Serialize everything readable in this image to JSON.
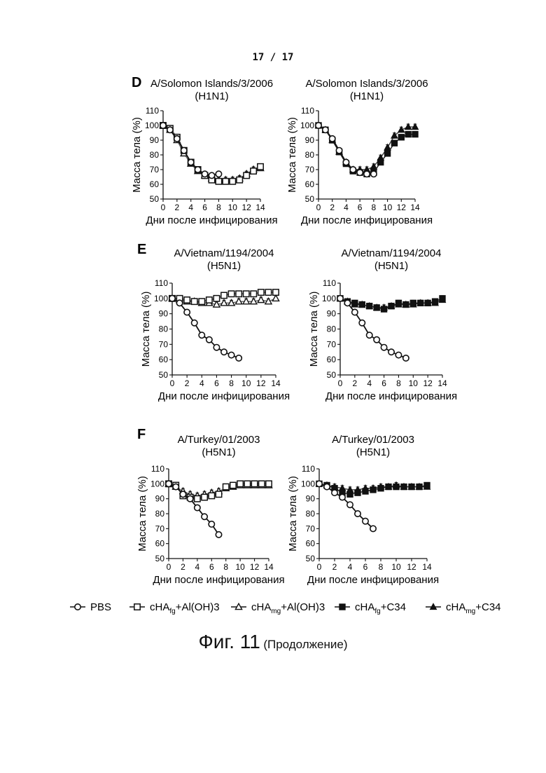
{
  "page_number": "17  /  17",
  "caption": {
    "main": "Фиг. 11",
    "sub": "(Продолжение)"
  },
  "legend": [
    {
      "key": "pbs",
      "label": "PBS",
      "sub": "",
      "after": "",
      "marker": "circle-open"
    },
    {
      "key": "fg_al",
      "label": "cHA",
      "sub": "fg",
      "after": "+Al(OH)3",
      "marker": "square-open"
    },
    {
      "key": "mg_al",
      "label": "cHA",
      "sub": "mg",
      "after": "+Al(OH)3",
      "marker": "triangle-open"
    },
    {
      "key": "fg_c34",
      "label": "cHA",
      "sub": "fg",
      "after": "+C34",
      "marker": "square-filled"
    },
    {
      "key": "mg_c34",
      "label": "cHA",
      "sub": "mg",
      "after": "+C34",
      "marker": "triangle-filled"
    }
  ],
  "chart_data": [
    {
      "type": "line",
      "panel": "D",
      "title": "A/Solomon Islands/3/2006",
      "subtitle": "(H1N1)",
      "xlabel": "Дни после инфицирования",
      "ylabel": "Масса тела (%)",
      "xlim": [
        0,
        14
      ],
      "ylim": [
        50,
        110
      ],
      "xticks": [
        0,
        2,
        4,
        6,
        8,
        10,
        12,
        14
      ],
      "yticks": [
        50,
        60,
        70,
        80,
        90,
        100,
        110
      ],
      "series": [
        {
          "key": "pbs",
          "x": [
            0,
            1,
            2,
            3,
            4,
            5,
            6,
            7,
            8
          ],
          "y": [
            100,
            97,
            91,
            83,
            75,
            70,
            67,
            66,
            67
          ]
        },
        {
          "key": "fg_al",
          "x": [
            0,
            1,
            2,
            3,
            4,
            5,
            6,
            7,
            8,
            9,
            10,
            11,
            12,
            13,
            14
          ],
          "y": [
            100,
            98,
            92,
            83,
            75,
            70,
            66,
            63,
            62,
            62,
            62,
            63,
            66,
            69,
            72
          ]
        },
        {
          "key": "mg_al",
          "x": [
            0,
            1,
            2,
            3,
            4,
            5,
            6,
            7,
            8,
            9,
            10,
            11,
            12,
            13,
            14
          ],
          "y": [
            100,
            97,
            90,
            81,
            74,
            69,
            66,
            64,
            63,
            63,
            63,
            64,
            67,
            70,
            71
          ]
        }
      ]
    },
    {
      "type": "line",
      "panel": "",
      "title": "A/Solomon Islands/3/2006",
      "subtitle": "(H1N1)",
      "xlabel": "Дни после инфицирования",
      "ylabel": "Масса тела (%)",
      "xlim": [
        0,
        14
      ],
      "ylim": [
        50,
        110
      ],
      "xticks": [
        0,
        2,
        4,
        6,
        8,
        10,
        12,
        14
      ],
      "yticks": [
        50,
        60,
        70,
        80,
        90,
        100,
        110
      ],
      "series": [
        {
          "key": "pbs",
          "x": [
            0,
            1,
            2,
            3,
            4,
            5,
            6,
            7,
            8
          ],
          "y": [
            100,
            97,
            91,
            83,
            75,
            70,
            68,
            67,
            67
          ]
        },
        {
          "key": "fg_c34",
          "x": [
            0,
            1,
            2,
            3,
            4,
            5,
            6,
            7,
            8,
            9,
            10,
            11,
            12,
            13,
            14
          ],
          "y": [
            100,
            97,
            90,
            82,
            74,
            69,
            68,
            67,
            68,
            75,
            81,
            88,
            92,
            94,
            94
          ]
        },
        {
          "key": "mg_c34",
          "x": [
            0,
            1,
            2,
            3,
            4,
            5,
            6,
            7,
            8,
            9,
            10,
            11,
            12,
            13,
            14
          ],
          "y": [
            100,
            97,
            90,
            82,
            75,
            70,
            70,
            70,
            72,
            78,
            85,
            93,
            97,
            99,
            99
          ]
        }
      ]
    },
    {
      "type": "line",
      "panel": "E",
      "title": "A/Vietnam/1194/2004",
      "subtitle": "(H5N1)",
      "xlabel": "Дни после инфицирования",
      "ylabel": "Масса тела (%)",
      "xlim": [
        0,
        14
      ],
      "ylim": [
        50,
        110
      ],
      "xticks": [
        0,
        2,
        4,
        6,
        8,
        10,
        12,
        14
      ],
      "yticks": [
        50,
        60,
        70,
        80,
        90,
        100,
        110
      ],
      "series": [
        {
          "key": "pbs",
          "x": [
            0,
            1,
            2,
            3,
            4,
            5,
            6,
            7,
            8,
            9
          ],
          "y": [
            100,
            97,
            91,
            84,
            76,
            73,
            68,
            65,
            63,
            61
          ]
        },
        {
          "key": "fg_al",
          "x": [
            0,
            1,
            2,
            3,
            4,
            5,
            6,
            7,
            8,
            9,
            10,
            11,
            12,
            13,
            14
          ],
          "y": [
            100,
            100,
            99,
            98,
            98,
            99,
            100,
            102,
            103,
            103,
            103,
            103,
            104,
            104,
            104
          ]
        },
        {
          "key": "mg_al",
          "x": [
            0,
            1,
            2,
            3,
            4,
            5,
            6,
            7,
            8,
            9,
            10,
            11,
            12,
            13,
            14
          ],
          "y": [
            100,
            99,
            98,
            98,
            97,
            97,
            96,
            97,
            97,
            98,
            98,
            98,
            99,
            98,
            100
          ]
        }
      ]
    },
    {
      "type": "line",
      "panel": "",
      "title": "A/Vietnam/1194/2004",
      "subtitle": "(H5N1)",
      "xlabel": "Дни после инфицирования",
      "ylabel": "Масса тела (%)",
      "xlim": [
        0,
        14
      ],
      "ylim": [
        50,
        110
      ],
      "xticks": [
        0,
        2,
        4,
        6,
        8,
        10,
        12,
        14
      ],
      "yticks": [
        50,
        60,
        70,
        80,
        90,
        100,
        110
      ],
      "series": [
        {
          "key": "pbs",
          "x": [
            0,
            1,
            2,
            3,
            4,
            5,
            6,
            7,
            8,
            9
          ],
          "y": [
            100,
            97,
            91,
            84,
            76,
            73,
            68,
            65,
            63,
            61
          ]
        },
        {
          "key": "fg_c34",
          "x": [
            0,
            1,
            2,
            3,
            4,
            5,
            6,
            7,
            8,
            9,
            10,
            11,
            12,
            13,
            14
          ],
          "y": [
            100,
            98,
            97,
            96,
            95,
            94,
            93,
            95,
            97,
            96,
            97,
            97,
            97,
            98,
            100
          ]
        },
        {
          "key": "mg_c34",
          "x": [
            0,
            1,
            2,
            3,
            4,
            5,
            6,
            7,
            8,
            9,
            10,
            11,
            12,
            13,
            14
          ],
          "y": [
            100,
            98,
            96,
            96,
            95,
            94,
            94,
            95,
            96,
            96,
            96,
            97,
            97,
            97,
            99
          ]
        }
      ]
    },
    {
      "type": "line",
      "panel": "F",
      "title": "A/Turkey/01/2003",
      "subtitle": "(H5N1)",
      "xlabel": "Дни после инфицирования",
      "ylabel": "Масса тела (%)",
      "xlim": [
        0,
        14
      ],
      "ylim": [
        50,
        110
      ],
      "xticks": [
        0,
        2,
        4,
        6,
        8,
        10,
        12,
        14
      ],
      "yticks": [
        50,
        60,
        70,
        80,
        90,
        100,
        110
      ],
      "series": [
        {
          "key": "pbs",
          "x": [
            0,
            1,
            2,
            3,
            4,
            5,
            6,
            7
          ],
          "y": [
            100,
            98,
            93,
            90,
            84,
            78,
            73,
            66
          ]
        },
        {
          "key": "fg_al",
          "x": [
            0,
            1,
            2,
            3,
            4,
            5,
            6,
            7,
            8,
            9,
            10,
            11,
            12,
            13,
            14
          ],
          "y": [
            100,
            99,
            92,
            91,
            90,
            91,
            92,
            93,
            98,
            99,
            100,
            100,
            100,
            100,
            100
          ]
        },
        {
          "key": "mg_al",
          "x": [
            0,
            1,
            2,
            3,
            4,
            5,
            6,
            7,
            8,
            9,
            10,
            11,
            12,
            13,
            14
          ],
          "y": [
            100,
            98,
            95,
            93,
            92,
            93,
            94,
            95,
            97,
            98,
            99,
            99,
            99,
            99,
            99
          ]
        }
      ]
    },
    {
      "type": "line",
      "panel": "",
      "title": "A/Turkey/01/2003",
      "subtitle": "(H5N1)",
      "xlabel": "Дни после инфицирования",
      "ylabel": "Масса тела (%)",
      "xlim": [
        0,
        14
      ],
      "ylim": [
        50,
        110
      ],
      "xticks": [
        0,
        2,
        4,
        6,
        8,
        10,
        12,
        14
      ],
      "yticks": [
        50,
        60,
        70,
        80,
        90,
        100,
        110
      ],
      "series": [
        {
          "key": "pbs",
          "x": [
            0,
            1,
            2,
            3,
            4,
            5,
            6,
            7
          ],
          "y": [
            100,
            98,
            94,
            91,
            86,
            80,
            75,
            70
          ]
        },
        {
          "key": "fg_c34",
          "x": [
            0,
            1,
            2,
            3,
            4,
            5,
            6,
            7,
            8,
            9,
            10,
            11,
            12,
            13,
            14
          ],
          "y": [
            100,
            99,
            97,
            94,
            93,
            94,
            95,
            96,
            97,
            98,
            98,
            98,
            98,
            98,
            99
          ]
        },
        {
          "key": "mg_c34",
          "x": [
            0,
            1,
            2,
            3,
            4,
            5,
            6,
            7,
            8,
            9,
            10,
            11,
            12,
            13,
            14
          ],
          "y": [
            100,
            99,
            98,
            97,
            96,
            96,
            97,
            97,
            98,
            98,
            99,
            98,
            98,
            98,
            98
          ]
        }
      ]
    }
  ]
}
